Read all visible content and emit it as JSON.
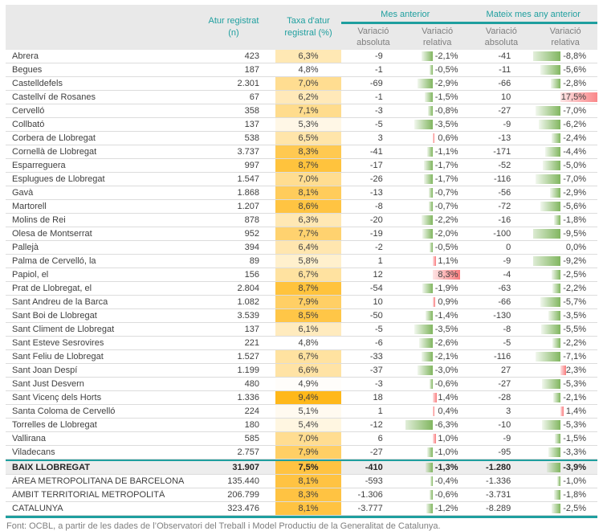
{
  "header": {
    "col_n_line1": "Atur registrat",
    "col_n_line2": "(n)",
    "col_rate_line1": "Taxa d'atur",
    "col_rate_line2": "registral (%)",
    "group_prev_month": "Mes anterior",
    "group_prev_year": "Mateix mes any anterior",
    "sub_label_line1": "Variació",
    "sub_abs_line2": "absoluta",
    "sub_rel_line2": "relativa"
  },
  "rows": [
    {
      "name": "Abrera",
      "n": "423",
      "rate": "6,3%",
      "mes_abs": "-9",
      "mes_rel": "-2,1%",
      "any_abs": "-41",
      "any_rel": "-8,8%",
      "style": "normal"
    },
    {
      "name": "Begues",
      "n": "187",
      "rate": "4,8%",
      "mes_abs": "-1",
      "mes_rel": "-0,5%",
      "any_abs": "-11",
      "any_rel": "-5,6%",
      "style": "normal"
    },
    {
      "name": "Castelldefels",
      "n": "2.301",
      "rate": "7,0%",
      "mes_abs": "-69",
      "mes_rel": "-2,9%",
      "any_abs": "-66",
      "any_rel": "-2,8%",
      "style": "normal"
    },
    {
      "name": "Castellví de Rosanes",
      "n": "67",
      "rate": "6,2%",
      "mes_abs": "-1",
      "mes_rel": "-1,5%",
      "any_abs": "10",
      "any_rel": "17,5%",
      "style": "normal"
    },
    {
      "name": "Cervelló",
      "n": "358",
      "rate": "7,1%",
      "mes_abs": "-3",
      "mes_rel": "-0,8%",
      "any_abs": "-27",
      "any_rel": "-7,0%",
      "style": "normal"
    },
    {
      "name": "Collbató",
      "n": "137",
      "rate": "5,3%",
      "mes_abs": "-5",
      "mes_rel": "-3,5%",
      "any_abs": "-9",
      "any_rel": "-6,2%",
      "style": "normal"
    },
    {
      "name": "Corbera de Llobregat",
      "n": "538",
      "rate": "6,5%",
      "mes_abs": "3",
      "mes_rel": "0,6%",
      "any_abs": "-13",
      "any_rel": "-2,4%",
      "style": "normal"
    },
    {
      "name": "Cornellà de Llobregat",
      "n": "3.737",
      "rate": "8,3%",
      "mes_abs": "-41",
      "mes_rel": "-1,1%",
      "any_abs": "-171",
      "any_rel": "-4,4%",
      "style": "normal"
    },
    {
      "name": "Esparreguera",
      "n": "997",
      "rate": "8,7%",
      "mes_abs": "-17",
      "mes_rel": "-1,7%",
      "any_abs": "-52",
      "any_rel": "-5,0%",
      "style": "normal"
    },
    {
      "name": "Esplugues de Llobregat",
      "n": "1.547",
      "rate": "7,0%",
      "mes_abs": "-26",
      "mes_rel": "-1,7%",
      "any_abs": "-116",
      "any_rel": "-7,0%",
      "style": "normal"
    },
    {
      "name": "Gavà",
      "n": "1.868",
      "rate": "8,1%",
      "mes_abs": "-13",
      "mes_rel": "-0,7%",
      "any_abs": "-56",
      "any_rel": "-2,9%",
      "style": "normal"
    },
    {
      "name": "Martorell",
      "n": "1.207",
      "rate": "8,6%",
      "mes_abs": "-8",
      "mes_rel": "-0,7%",
      "any_abs": "-72",
      "any_rel": "-5,6%",
      "style": "normal"
    },
    {
      "name": "Molins de Rei",
      "n": "878",
      "rate": "6,3%",
      "mes_abs": "-20",
      "mes_rel": "-2,2%",
      "any_abs": "-16",
      "any_rel": "-1,8%",
      "style": "normal"
    },
    {
      "name": "Olesa de Montserrat",
      "n": "952",
      "rate": "7,7%",
      "mes_abs": "-19",
      "mes_rel": "-2,0%",
      "any_abs": "-100",
      "any_rel": "-9,5%",
      "style": "normal"
    },
    {
      "name": "Pallejà",
      "n": "394",
      "rate": "6,4%",
      "mes_abs": "-2",
      "mes_rel": "-0,5%",
      "any_abs": "0",
      "any_rel": "0,0%",
      "style": "normal"
    },
    {
      "name": "Palma de Cervelló, la",
      "n": "89",
      "rate": "5,8%",
      "mes_abs": "1",
      "mes_rel": "1,1%",
      "any_abs": "-9",
      "any_rel": "-9,2%",
      "style": "normal"
    },
    {
      "name": "Papiol, el",
      "n": "156",
      "rate": "6,7%",
      "mes_abs": "12",
      "mes_rel": "8,3%",
      "any_abs": "-4",
      "any_rel": "-2,5%",
      "style": "normal"
    },
    {
      "name": "Prat de Llobregat, el",
      "n": "2.804",
      "rate": "8,7%",
      "mes_abs": "-54",
      "mes_rel": "-1,9%",
      "any_abs": "-63",
      "any_rel": "-2,2%",
      "style": "normal"
    },
    {
      "name": "Sant Andreu de la Barca",
      "n": "1.082",
      "rate": "7,9%",
      "mes_abs": "10",
      "mes_rel": "0,9%",
      "any_abs": "-66",
      "any_rel": "-5,7%",
      "style": "normal"
    },
    {
      "name": "Sant Boi de Llobregat",
      "n": "3.539",
      "rate": "8,5%",
      "mes_abs": "-50",
      "mes_rel": "-1,4%",
      "any_abs": "-130",
      "any_rel": "-3,5%",
      "style": "normal"
    },
    {
      "name": "Sant Climent de Llobregat",
      "n": "137",
      "rate": "6,1%",
      "mes_abs": "-5",
      "mes_rel": "-3,5%",
      "any_abs": "-8",
      "any_rel": "-5,5%",
      "style": "normal"
    },
    {
      "name": "Sant Esteve Sesrovires",
      "n": "221",
      "rate": "4,8%",
      "mes_abs": "-6",
      "mes_rel": "-2,6%",
      "any_abs": "-5",
      "any_rel": "-2,2%",
      "style": "normal"
    },
    {
      "name": "Sant Feliu de Llobregat",
      "n": "1.527",
      "rate": "6,7%",
      "mes_abs": "-33",
      "mes_rel": "-2,1%",
      "any_abs": "-116",
      "any_rel": "-7,1%",
      "style": "normal"
    },
    {
      "name": "Sant Joan Despí",
      "n": "1.199",
      "rate": "6,6%",
      "mes_abs": "-37",
      "mes_rel": "-3,0%",
      "any_abs": "27",
      "any_rel": "2,3%",
      "style": "normal"
    },
    {
      "name": "Sant Just Desvern",
      "n": "480",
      "rate": "4,9%",
      "mes_abs": "-3",
      "mes_rel": "-0,6%",
      "any_abs": "-27",
      "any_rel": "-5,3%",
      "style": "normal"
    },
    {
      "name": "Sant Vicenç dels Horts",
      "n": "1.336",
      "rate": "9,4%",
      "mes_abs": "18",
      "mes_rel": "1,4%",
      "any_abs": "-28",
      "any_rel": "-2,1%",
      "style": "normal"
    },
    {
      "name": "Santa Coloma de Cervelló",
      "n": "224",
      "rate": "5,1%",
      "mes_abs": "1",
      "mes_rel": "0,4%",
      "any_abs": "3",
      "any_rel": "1,4%",
      "style": "normal"
    },
    {
      "name": "Torrelles de Llobregat",
      "n": "180",
      "rate": "5,4%",
      "mes_abs": "-12",
      "mes_rel": "-6,3%",
      "any_abs": "-10",
      "any_rel": "-5,3%",
      "style": "normal"
    },
    {
      "name": "Vallirana",
      "n": "585",
      "rate": "7,0%",
      "mes_abs": "6",
      "mes_rel": "1,0%",
      "any_abs": "-9",
      "any_rel": "-1,5%",
      "style": "normal"
    },
    {
      "name": "Viladecans",
      "n": "2.757",
      "rate": "7,9%",
      "mes_abs": "-27",
      "mes_rel": "-1,0%",
      "any_abs": "-95",
      "any_rel": "-3,3%",
      "style": "normal"
    },
    {
      "name": "BAIX LLOBREGAT",
      "n": "31.907",
      "rate": "7,5%",
      "mes_abs": "-410",
      "mes_rel": "-1,3%",
      "any_abs": "-1.280",
      "any_rel": "-3,9%",
      "style": "total"
    },
    {
      "name": "ÀREA METROPOLITANA DE BARCELONA",
      "n": "135.440",
      "rate": "8,1%",
      "mes_abs": "-593",
      "mes_rel": "-0,4%",
      "any_abs": "-1.336",
      "any_rel": "-1,0%",
      "style": "region"
    },
    {
      "name": "ÀMBIT TERRITORIAL METROPOLITÀ",
      "n": "206.799",
      "rate": "8,3%",
      "mes_abs": "-1.306",
      "mes_rel": "-0,6%",
      "any_abs": "-3.731",
      "any_rel": "-1,8%",
      "style": "region"
    },
    {
      "name": "CATALUNYA",
      "n": "323.476",
      "rate": "8,1%",
      "mes_abs": "-3.777",
      "mes_rel": "-1,2%",
      "any_abs": "-8.289",
      "any_rel": "-2,5%",
      "style": "region"
    }
  ],
  "colors": {
    "teal": "#1f9f9f",
    "rate_scale_low": "#ffffff",
    "rate_scale_high": "#ffb81a",
    "rate_summary_bg": "#ffc342",
    "bar_green": "#7ab257",
    "bar_red": "#f8696b",
    "header_bg": "#e9e9e9"
  },
  "rate_scale": {
    "min": 4.8,
    "max": 9.4
  },
  "footer": "Font: OCBL, a partir de les dades de l’Observatori del Treball i Model Productiu de la Generalitat de Catalunya."
}
